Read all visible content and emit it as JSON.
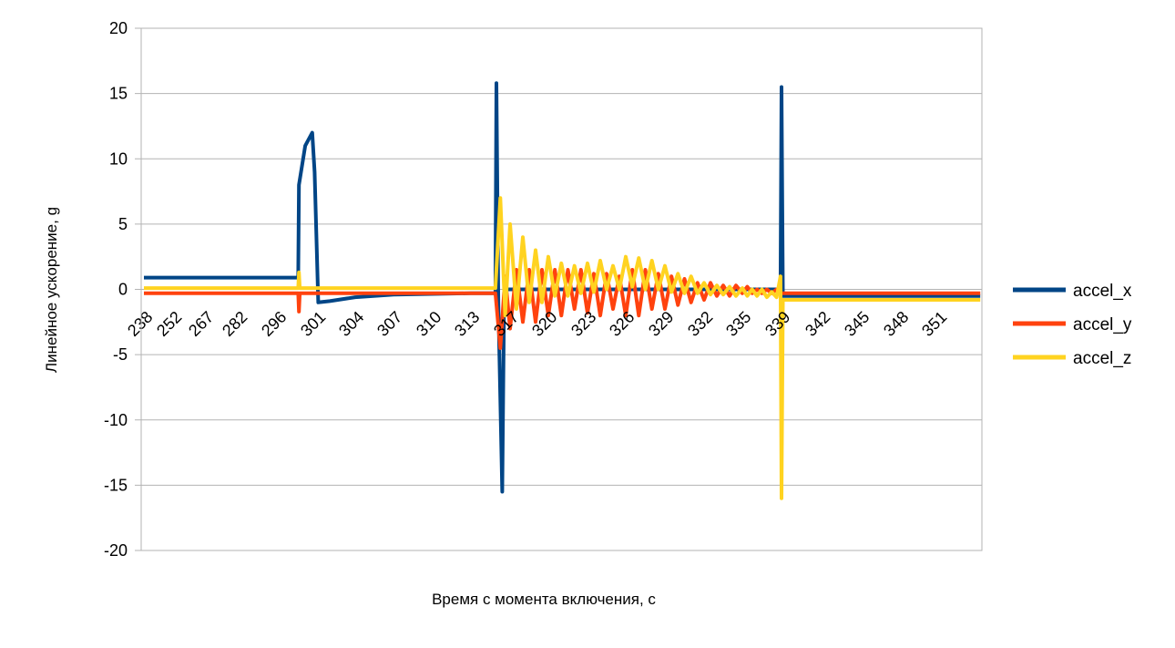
{
  "chart_data": {
    "type": "line",
    "title": "",
    "xlabel": "Время с момента включения, с",
    "ylabel": "Линейное ускорение, g",
    "ylim": [
      -20,
      20
    ],
    "yticks": [
      20,
      15,
      10,
      5,
      0,
      -5,
      -10,
      -15,
      -20
    ],
    "xlim": [
      238,
      354.3
    ],
    "xticks": [
      238,
      252,
      267,
      282,
      296,
      301,
      304,
      307,
      310,
      313,
      317,
      320,
      323,
      326,
      329,
      332,
      335,
      339,
      342,
      345,
      348,
      351
    ],
    "grid": true,
    "legend": "right",
    "series": [
      {
        "name": "accel_x",
        "color": "#004586",
        "points": [
          [
            238,
            0.9
          ],
          [
            296,
            0.9
          ],
          [
            298.6,
            0.9
          ],
          [
            298.7,
            8
          ],
          [
            299.5,
            11
          ],
          [
            300.4,
            12
          ],
          [
            300.7,
            9
          ],
          [
            301.1,
            -1
          ],
          [
            302,
            -0.9
          ],
          [
            304,
            -0.6
          ],
          [
            307,
            -0.4
          ],
          [
            313,
            -0.3
          ],
          [
            315.5,
            -0.3
          ],
          [
            315.6,
            15.8
          ],
          [
            315.8,
            -1
          ],
          [
            316.2,
            -15.5
          ],
          [
            316.4,
            0
          ],
          [
            338.9,
            0
          ],
          [
            339,
            15.5
          ],
          [
            339.1,
            -0.5
          ],
          [
            354.3,
            -0.5
          ]
        ]
      },
      {
        "name": "accel_y",
        "color": "#ff420e",
        "points": [
          [
            238,
            -0.3
          ],
          [
            298.6,
            -0.3
          ],
          [
            298.7,
            -1.7
          ],
          [
            298.8,
            -0.3
          ],
          [
            315.5,
            -0.3
          ],
          [
            316,
            -4.5
          ],
          [
            316.5,
            1
          ],
          [
            317,
            -3
          ],
          [
            317.5,
            1.5
          ],
          [
            318,
            -2.5
          ],
          [
            318.5,
            1.5
          ],
          [
            319,
            -2.5
          ],
          [
            319.5,
            1.5
          ],
          [
            320,
            -2
          ],
          [
            320.5,
            1.5
          ],
          [
            321,
            -2
          ],
          [
            321.5,
            1.5
          ],
          [
            322,
            -1.5
          ],
          [
            322.5,
            1.5
          ],
          [
            323,
            -1.8
          ],
          [
            323.5,
            1.2
          ],
          [
            324,
            -2
          ],
          [
            324.5,
            1.2
          ],
          [
            325,
            -1.5
          ],
          [
            325.5,
            1
          ],
          [
            326,
            -2
          ],
          [
            326.5,
            1.5
          ],
          [
            327,
            -2
          ],
          [
            327.5,
            1.5
          ],
          [
            328,
            -1.5
          ],
          [
            328.5,
            1.2
          ],
          [
            329,
            -1.5
          ],
          [
            329.5,
            1
          ],
          [
            330,
            -1.2
          ],
          [
            330.5,
            0.8
          ],
          [
            331,
            -1
          ],
          [
            331.5,
            0.5
          ],
          [
            332,
            -0.8
          ],
          [
            332.5,
            0.5
          ],
          [
            333,
            -0.5
          ],
          [
            333.5,
            0.3
          ],
          [
            334,
            -0.5
          ],
          [
            334.5,
            0.3
          ],
          [
            335,
            -0.3
          ],
          [
            335.5,
            0.2
          ],
          [
            336,
            -0.3
          ],
          [
            336.5,
            0
          ],
          [
            337,
            -0.3
          ],
          [
            337.5,
            0
          ],
          [
            338,
            -0.3
          ],
          [
            338.5,
            0
          ],
          [
            339,
            -0.3
          ],
          [
            354.3,
            -0.3
          ]
        ]
      },
      {
        "name": "accel_z",
        "color": "#ffd320",
        "points": [
          [
            238,
            0.1
          ],
          [
            298.6,
            0.1
          ],
          [
            298.7,
            1.3
          ],
          [
            298.8,
            0.1
          ],
          [
            315.5,
            0.1
          ],
          [
            316,
            7
          ],
          [
            316.5,
            -2
          ],
          [
            317,
            5
          ],
          [
            317.5,
            -1.5
          ],
          [
            318,
            4
          ],
          [
            318.5,
            -1
          ],
          [
            319,
            3
          ],
          [
            319.5,
            -1
          ],
          [
            320,
            2.5
          ],
          [
            320.5,
            -0.5
          ],
          [
            321,
            2
          ],
          [
            321.5,
            -0.5
          ],
          [
            322,
            1.8
          ],
          [
            322.5,
            -0.3
          ],
          [
            323,
            2
          ],
          [
            323.5,
            -0.2
          ],
          [
            324,
            2.2
          ],
          [
            324.5,
            0
          ],
          [
            325,
            1.8
          ],
          [
            325.5,
            0
          ],
          [
            326,
            2.5
          ],
          [
            326.5,
            0.2
          ],
          [
            327,
            2.4
          ],
          [
            327.5,
            0
          ],
          [
            328,
            2.2
          ],
          [
            328.5,
            0
          ],
          [
            329,
            1.8
          ],
          [
            329.5,
            -0.2
          ],
          [
            330,
            1.2
          ],
          [
            330.5,
            -0.3
          ],
          [
            331,
            1
          ],
          [
            331.5,
            -0.3
          ],
          [
            332,
            0.5
          ],
          [
            332.5,
            -0.4
          ],
          [
            333,
            0.3
          ],
          [
            333.5,
            -0.4
          ],
          [
            334,
            0.2
          ],
          [
            334.5,
            -0.5
          ],
          [
            335,
            0.1
          ],
          [
            335.5,
            -0.5
          ],
          [
            336,
            0
          ],
          [
            336.5,
            -0.5
          ],
          [
            337,
            0
          ],
          [
            337.5,
            -0.6
          ],
          [
            338,
            -0.2
          ],
          [
            338.5,
            -0.6
          ],
          [
            338.9,
            1
          ],
          [
            339,
            -16
          ],
          [
            339.1,
            -0.8
          ],
          [
            354.3,
            -0.8
          ]
        ]
      }
    ]
  }
}
